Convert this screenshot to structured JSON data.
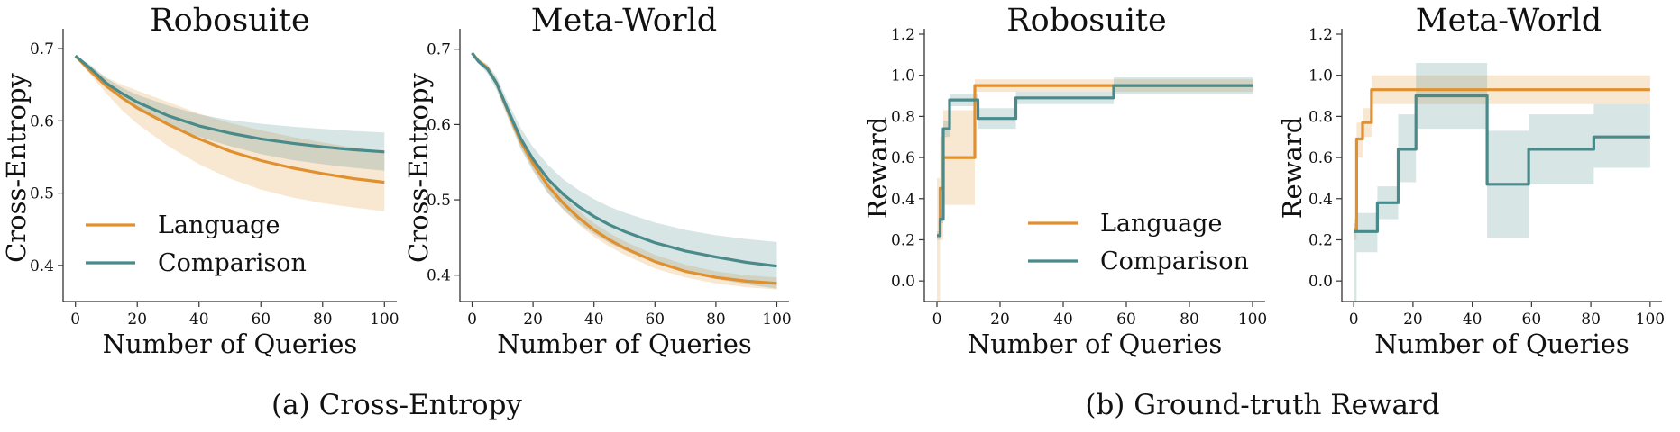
{
  "captions": {
    "a": "(a) Cross-Entropy",
    "b": "(b) Ground-truth Reward"
  },
  "colors": {
    "language": "#E0902E",
    "comparison": "#4A8A8A"
  },
  "chart_data": [
    {
      "type": "line",
      "title": "Robosuite",
      "xlabel": "Number of Queries",
      "ylabel": "Cross-Entropy",
      "xlim": [
        -4,
        104
      ],
      "ylim": [
        0.35,
        0.72
      ],
      "xticks": [
        0,
        20,
        40,
        60,
        80,
        100
      ],
      "yticks": [
        0.4,
        0.5,
        0.6,
        0.7
      ],
      "ytick_labels": [
        "0.4",
        "0.5",
        "0.6",
        "0.7"
      ],
      "grid": false,
      "legend": "bottom-left",
      "series": [
        {
          "name": "Language",
          "color": "#E0902E",
          "step": false,
          "x": [
            0,
            5,
            10,
            15,
            20,
            30,
            40,
            50,
            60,
            70,
            80,
            90,
            100
          ],
          "y": [
            0.69,
            0.668,
            0.648,
            0.632,
            0.618,
            0.595,
            0.575,
            0.558,
            0.545,
            0.535,
            0.527,
            0.52,
            0.515
          ],
          "lower": [
            0.69,
            0.663,
            0.638,
            0.615,
            0.596,
            0.565,
            0.54,
            0.52,
            0.505,
            0.494,
            0.486,
            0.48,
            0.475
          ],
          "upper": [
            0.69,
            0.674,
            0.66,
            0.65,
            0.642,
            0.626,
            0.61,
            0.597,
            0.587,
            0.578,
            0.57,
            0.563,
            0.557
          ]
        },
        {
          "name": "Comparison",
          "color": "#4A8A8A",
          "step": false,
          "x": [
            0,
            5,
            10,
            15,
            20,
            30,
            40,
            50,
            60,
            70,
            80,
            90,
            100
          ],
          "y": [
            0.69,
            0.672,
            0.652,
            0.638,
            0.626,
            0.607,
            0.593,
            0.583,
            0.575,
            0.569,
            0.564,
            0.56,
            0.557
          ],
          "lower": [
            0.69,
            0.667,
            0.646,
            0.63,
            0.615,
            0.594,
            0.578,
            0.565,
            0.554,
            0.546,
            0.54,
            0.535,
            0.531
          ],
          "upper": [
            0.69,
            0.677,
            0.659,
            0.646,
            0.636,
            0.621,
            0.609,
            0.601,
            0.596,
            0.592,
            0.589,
            0.586,
            0.584
          ]
        }
      ]
    },
    {
      "type": "line",
      "title": "Meta-World",
      "xlabel": "Number of Queries",
      "ylabel": "Cross-Entropy",
      "xlim": [
        -4,
        104
      ],
      "ylim": [
        0.365,
        0.72
      ],
      "xticks": [
        0,
        20,
        40,
        60,
        80,
        100
      ],
      "yticks": [
        0.4,
        0.5,
        0.6,
        0.7
      ],
      "ytick_labels": [
        "0.4",
        "0.5",
        "0.6",
        "0.7"
      ],
      "grid": false,
      "legend": "none",
      "series": [
        {
          "name": "Language",
          "color": "#E0902E",
          "step": false,
          "x": [
            0,
            2,
            5,
            8,
            12,
            16,
            20,
            25,
            30,
            35,
            40,
            45,
            50,
            60,
            70,
            80,
            90,
            100
          ],
          "y": [
            0.695,
            0.685,
            0.675,
            0.655,
            0.615,
            0.577,
            0.548,
            0.518,
            0.495,
            0.476,
            0.46,
            0.447,
            0.436,
            0.418,
            0.405,
            0.397,
            0.392,
            0.389
          ],
          "lower": [
            0.695,
            0.683,
            0.671,
            0.65,
            0.609,
            0.57,
            0.54,
            0.509,
            0.486,
            0.467,
            0.451,
            0.438,
            0.427,
            0.409,
            0.397,
            0.389,
            0.384,
            0.381
          ],
          "upper": [
            0.695,
            0.687,
            0.679,
            0.66,
            0.621,
            0.584,
            0.556,
            0.527,
            0.504,
            0.485,
            0.469,
            0.456,
            0.445,
            0.427,
            0.414,
            0.405,
            0.4,
            0.397
          ]
        },
        {
          "name": "Comparison",
          "color": "#4A8A8A",
          "step": false,
          "x": [
            0,
            2,
            5,
            8,
            12,
            16,
            20,
            25,
            30,
            35,
            40,
            45,
            50,
            60,
            70,
            80,
            90,
            100
          ],
          "y": [
            0.695,
            0.684,
            0.674,
            0.655,
            0.617,
            0.581,
            0.554,
            0.527,
            0.507,
            0.491,
            0.478,
            0.467,
            0.458,
            0.443,
            0.432,
            0.424,
            0.417,
            0.412
          ],
          "lower": [
            0.695,
            0.681,
            0.668,
            0.646,
            0.606,
            0.567,
            0.538,
            0.508,
            0.487,
            0.469,
            0.455,
            0.443,
            0.433,
            0.416,
            0.404,
            0.395,
            0.388,
            0.382
          ],
          "upper": [
            0.695,
            0.687,
            0.68,
            0.664,
            0.628,
            0.595,
            0.57,
            0.546,
            0.527,
            0.513,
            0.501,
            0.491,
            0.483,
            0.47,
            0.46,
            0.453,
            0.448,
            0.444
          ]
        }
      ]
    },
    {
      "type": "line",
      "title": "Robosuite",
      "xlabel": "Number of Queries",
      "ylabel": "Reward",
      "xlim": [
        -4,
        104
      ],
      "ylim": [
        -0.1,
        1.2
      ],
      "xticks": [
        0,
        20,
        40,
        60,
        80,
        100
      ],
      "yticks": [
        0.0,
        0.2,
        0.4,
        0.6,
        0.8,
        1.0,
        1.2
      ],
      "ytick_labels": [
        "0.0",
        "0.2",
        "0.4",
        "0.6",
        "0.8",
        "1.0",
        "1.2"
      ],
      "grid": false,
      "legend": "bottom-right",
      "series": [
        {
          "name": "Language",
          "color": "#E0902E",
          "step": true,
          "x": [
            0,
            1,
            2,
            12,
            100
          ],
          "y": [
            0.22,
            0.45,
            0.6,
            0.95,
            0.95
          ],
          "lower": [
            -0.1,
            0.2,
            0.37,
            0.92,
            0.92
          ],
          "upper": [
            0.5,
            0.7,
            0.83,
            0.98,
            0.98
          ]
        },
        {
          "name": "Comparison",
          "color": "#4A8A8A",
          "step": true,
          "x": [
            0,
            1,
            2,
            3,
            4,
            12,
            13,
            25,
            56,
            100
          ],
          "y": [
            0.22,
            0.3,
            0.74,
            0.74,
            0.88,
            0.88,
            0.79,
            0.89,
            0.95,
            0.95
          ],
          "lower": [
            0.2,
            0.28,
            0.7,
            0.7,
            0.85,
            0.85,
            0.74,
            0.86,
            0.91,
            0.91
          ],
          "upper": [
            0.24,
            0.32,
            0.78,
            0.78,
            0.91,
            0.91,
            0.84,
            0.92,
            0.99,
            0.99
          ]
        }
      ]
    },
    {
      "type": "line",
      "title": "Meta-World",
      "xlabel": "Number of Queries",
      "ylabel": "Reward",
      "xlim": [
        -4,
        104
      ],
      "ylim": [
        -0.1,
        1.2
      ],
      "xticks": [
        0,
        20,
        40,
        60,
        80,
        100
      ],
      "yticks": [
        0.0,
        0.2,
        0.4,
        0.6,
        0.8,
        1.0,
        1.2
      ],
      "ytick_labels": [
        "0.0",
        "0.2",
        "0.4",
        "0.6",
        "0.8",
        "1.0",
        "1.2"
      ],
      "grid": false,
      "legend": "none",
      "series": [
        {
          "name": "Language",
          "color": "#E0902E",
          "step": true,
          "x": [
            0,
            1,
            2,
            3,
            4,
            6,
            100
          ],
          "y": [
            0.25,
            0.69,
            0.69,
            0.77,
            0.77,
            0.93,
            0.93
          ],
          "lower": [
            0.2,
            0.6,
            0.6,
            0.7,
            0.7,
            0.86,
            0.86
          ],
          "upper": [
            0.3,
            0.77,
            0.77,
            0.84,
            0.84,
            1.0,
            1.0
          ]
        },
        {
          "name": "Comparison",
          "color": "#4A8A8A",
          "step": true,
          "x": [
            0,
            1,
            8,
            15,
            21,
            45,
            59,
            81,
            100
          ],
          "y": [
            0.24,
            0.24,
            0.38,
            0.64,
            0.9,
            0.47,
            0.64,
            0.7,
            0.7
          ],
          "lower": [
            -0.1,
            0.14,
            0.3,
            0.48,
            0.74,
            0.21,
            0.47,
            0.55,
            0.55
          ],
          "upper": [
            0.28,
            0.33,
            0.46,
            0.81,
            1.06,
            0.73,
            0.81,
            0.86,
            0.86
          ]
        }
      ]
    }
  ]
}
